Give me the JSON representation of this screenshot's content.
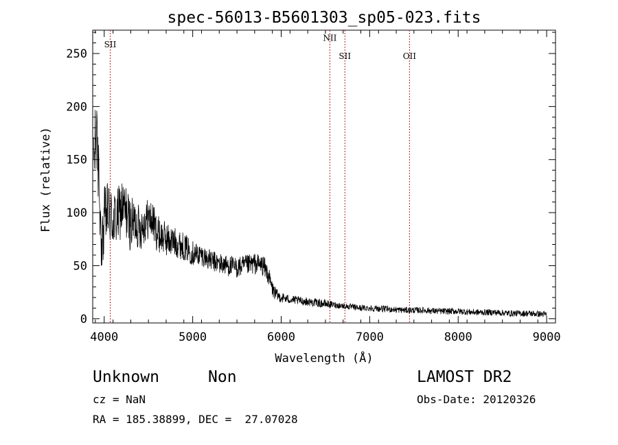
{
  "chart_data": {
    "type": "line",
    "title": "spec-56013-B5601303_sp05-023.fits",
    "xlabel": "Wavelength (Å)",
    "ylabel": "Flux (relative)",
    "xlim": [
      3870,
      9100
    ],
    "ylim": [
      -4,
      272
    ],
    "x_ticks": [
      4000,
      5000,
      6000,
      7000,
      8000,
      9000
    ],
    "x_tick_labels": [
      "4000",
      "5000",
      "6000",
      "7000",
      "8000",
      "9000"
    ],
    "y_ticks": [
      0,
      50,
      100,
      150,
      200,
      250
    ],
    "y_tick_labels": [
      "0",
      "50",
      "100",
      "150",
      "200",
      "250"
    ],
    "line_color": "#000000",
    "marker_color": "#b22222",
    "lines": [
      {
        "label": "SII",
        "x": 4068,
        "label_y": 256
      },
      {
        "label": "NII",
        "x": 6550,
        "label_y": 262
      },
      {
        "label": "SII",
        "x": 6720,
        "label_y": 245
      },
      {
        "label": "OII",
        "x": 7450,
        "label_y": 245
      }
    ],
    "spectrum": {
      "x": [
        3880,
        3900,
        3920,
        3940,
        3960,
        3980,
        4000,
        4050,
        4100,
        4150,
        4200,
        4250,
        4300,
        4350,
        4400,
        4450,
        4500,
        4550,
        4600,
        4700,
        4800,
        4900,
        5000,
        5100,
        5200,
        5300,
        5400,
        5500,
        5600,
        5700,
        5800,
        5850,
        5900,
        5950,
        6000,
        6100,
        6200,
        6300,
        6400,
        6500,
        6600,
        6700,
        6800,
        6900,
        7000,
        7200,
        7400,
        7600,
        7800,
        8000,
        8200,
        8400,
        8600,
        8800,
        9000
      ],
      "y": [
        140,
        180,
        160,
        130,
        90,
        70,
        95,
        100,
        92,
        95,
        105,
        100,
        88,
        92,
        85,
        90,
        95,
        92,
        80,
        75,
        72,
        68,
        62,
        60,
        55,
        52,
        50,
        48,
        50,
        52,
        50,
        42,
        28,
        22,
        20,
        18,
        17,
        16,
        15,
        14,
        13,
        12,
        11,
        10,
        10,
        9,
        8,
        8,
        7,
        7,
        6,
        6,
        5,
        5,
        4
      ],
      "noise": [
        35,
        35,
        35,
        35,
        35,
        30,
        30,
        30,
        28,
        28,
        28,
        26,
        26,
        22,
        22,
        20,
        20,
        18,
        18,
        16,
        14,
        13,
        12,
        10,
        10,
        10,
        10,
        10,
        10,
        10,
        10,
        9,
        8,
        6,
        5,
        4,
        4,
        4,
        4,
        4,
        3,
        3,
        3,
        3,
        3,
        3,
        3,
        3,
        3,
        3,
        3,
        3,
        3,
        3,
        3
      ]
    }
  },
  "info": {
    "class": "Unknown",
    "subclass": "Non",
    "survey": "LAMOST DR2",
    "cz": "cz = NaN",
    "obs_date": "Obs-Date: 20120326",
    "coords": "RA = 185.38899, DEC =  27.07028"
  }
}
